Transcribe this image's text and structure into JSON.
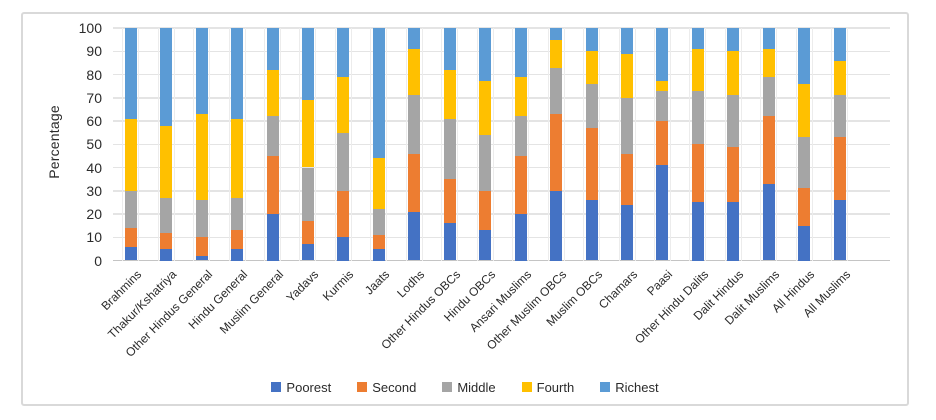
{
  "figure": {
    "background": "#ffffff",
    "border_color": "#d9d9d9",
    "gridline_color": "#e4e4e4"
  },
  "chart_data": {
    "type": "bar",
    "stacked": true,
    "title": "",
    "xlabel": "",
    "ylabel": "Percentage",
    "ylim": [
      0,
      100
    ],
    "yticks": [
      0,
      10,
      20,
      30,
      40,
      50,
      60,
      70,
      80,
      90,
      100
    ],
    "grid": "horizontal",
    "legend_position": "bottom",
    "categories": [
      "Brahmins",
      "Thakur/Kshatriya",
      "Other Hindus General",
      "Hindu General",
      "Muslim General",
      "Yadavs",
      "Kurmis",
      "Jaats",
      "Lodhs",
      "Other Hindus OBCs",
      "Hindu OBCs",
      "Ansari Muslims",
      "Other Muslim OBCs",
      "Muslim OBCs",
      "Chamars",
      "Paasi",
      "Other Hindu Dalits",
      "Dalit Hindus",
      "Dalit Muslims",
      "All Hindus",
      "All Muslims"
    ],
    "series": [
      {
        "name": "Poorest",
        "color": "#4472C4",
        "values": [
          6,
          5,
          2,
          5,
          20,
          7,
          10,
          5,
          21,
          16,
          13,
          20,
          30,
          26,
          24,
          41,
          25,
          25,
          33,
          15,
          26
        ]
      },
      {
        "name": "Second",
        "color": "#ED7D31",
        "values": [
          8,
          7,
          8,
          8,
          25,
          10,
          20,
          6,
          25,
          19,
          17,
          25,
          33,
          31,
          22,
          19,
          25,
          24,
          29,
          16,
          27
        ]
      },
      {
        "name": "Middle",
        "color": "#A5A5A5",
        "values": [
          16,
          15,
          16,
          14,
          17,
          23,
          25,
          11,
          25,
          26,
          24,
          17,
          20,
          19,
          24,
          13,
          23,
          22,
          17,
          22,
          18
        ]
      },
      {
        "name": "Fourth",
        "color": "#FFC000",
        "values": [
          31,
          31,
          37,
          34,
          20,
          29,
          24,
          22,
          20,
          21,
          23,
          17,
          12,
          14,
          19,
          4,
          18,
          19,
          12,
          23,
          15
        ]
      },
      {
        "name": "Richest",
        "color": "#5B9BD5",
        "values": [
          39,
          42,
          37,
          39,
          18,
          31,
          21,
          56,
          9,
          18,
          23,
          21,
          5,
          10,
          11,
          23,
          9,
          10,
          9,
          24,
          14
        ]
      }
    ]
  }
}
